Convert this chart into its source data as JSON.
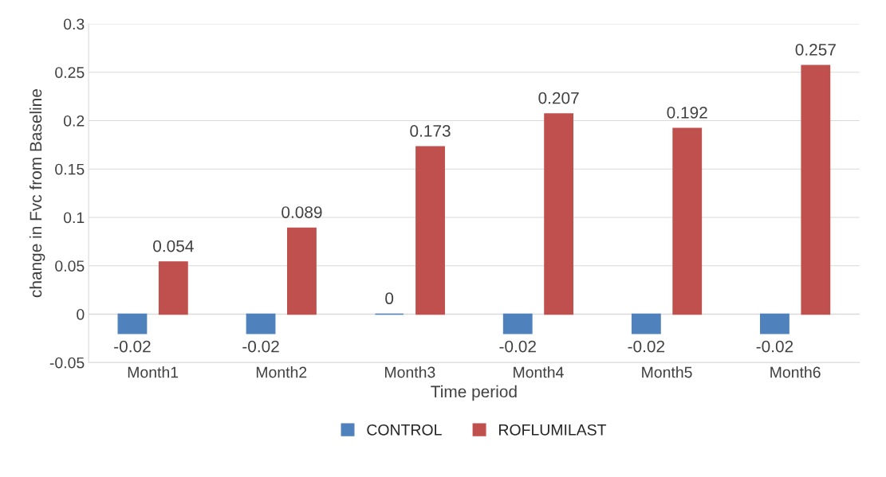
{
  "chart_data": {
    "type": "bar",
    "xlabel": "Time period",
    "ylabel": "change in Fvc from Baseline",
    "categories": [
      "Month1",
      "Month2",
      "Month3",
      "Month4",
      "Month5",
      "Month6"
    ],
    "series": [
      {
        "name": "CONTROL",
        "color": "#4f81bd",
        "values": [
          -0.02,
          -0.02,
          0,
          -0.02,
          -0.02,
          -0.02
        ]
      },
      {
        "name": "ROFLUMILAST",
        "color": "#c0504d",
        "values": [
          0.054,
          0.089,
          0.173,
          0.207,
          0.192,
          0.257
        ]
      }
    ],
    "ylim": [
      -0.05,
      0.3
    ],
    "yticks": [
      -0.05,
      0,
      0.05,
      0.1,
      0.15,
      0.2,
      0.25,
      0.3
    ],
    "grid": "y",
    "legend": "bottom",
    "data_labels": true
  }
}
